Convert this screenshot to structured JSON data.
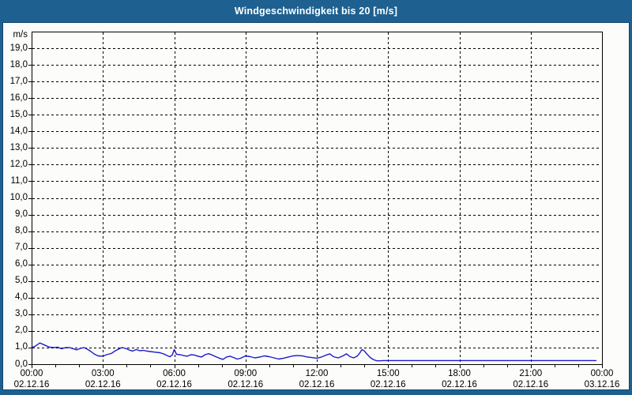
{
  "titlebar": {
    "title": "Windgeschwindigkeit bis 20 [m/s]",
    "bg_color": "#1E6190",
    "text_color": "#FFFFFF"
  },
  "panel": {
    "bg_color": "#FCFDFA",
    "border_color": "#10446C"
  },
  "chart_data": {
    "type": "line",
    "title": "Windgeschwindigkeit bis 20 [m/s]",
    "unit": "m/s",
    "ylabel": "m/s",
    "ylim": [
      0,
      20
    ],
    "xlim_hours": [
      0,
      24
    ],
    "grid": "dashed",
    "grid_color": "#000000",
    "y_tick_step": 1.0,
    "y_tick_labels": [
      "0,0",
      "1,0",
      "2,0",
      "3,0",
      "4,0",
      "5,0",
      "6,0",
      "7,0",
      "8,0",
      "9,0",
      "10,0",
      "11,0",
      "12,0",
      "13,0",
      "14,0",
      "15,0",
      "16,0",
      "17,0",
      "18,0",
      "19,0"
    ],
    "x_ticks": [
      {
        "hour": 0,
        "time": "00:00",
        "date": "02.12.16"
      },
      {
        "hour": 3,
        "time": "03:00",
        "date": "02.12.16"
      },
      {
        "hour": 6,
        "time": "06:00",
        "date": "02.12.16"
      },
      {
        "hour": 9,
        "time": "09:00",
        "date": "02.12.16"
      },
      {
        "hour": 12,
        "time": "12:00",
        "date": "02.12.16"
      },
      {
        "hour": 15,
        "time": "15:00",
        "date": "02.12.16"
      },
      {
        "hour": 18,
        "time": "18:00",
        "date": "02.12.16"
      },
      {
        "hour": 21,
        "time": "21:00",
        "date": "02.12.16"
      },
      {
        "hour": 24,
        "time": "00:00",
        "date": "03.12.16"
      }
    ],
    "minor_x_tick_hours": 1,
    "line_color": "#1B1BCE",
    "series": [
      {
        "name": "Windgeschwindigkeit",
        "points": [
          [
            0,
            1.0
          ],
          [
            0.15,
            1.08
          ],
          [
            0.35,
            1.28
          ],
          [
            0.55,
            1.15
          ],
          [
            0.75,
            1.02
          ],
          [
            0.95,
            1.0
          ],
          [
            1.1,
            1.02
          ],
          [
            1.25,
            0.93
          ],
          [
            1.45,
            1.0
          ],
          [
            1.6,
            1.0
          ],
          [
            1.75,
            0.93
          ],
          [
            1.9,
            0.86
          ],
          [
            2.05,
            0.95
          ],
          [
            2.2,
            1.0
          ],
          [
            2.35,
            0.9
          ],
          [
            2.5,
            0.76
          ],
          [
            2.65,
            0.6
          ],
          [
            2.8,
            0.5
          ],
          [
            3.0,
            0.48
          ],
          [
            3.15,
            0.57
          ],
          [
            3.35,
            0.64
          ],
          [
            3.5,
            0.79
          ],
          [
            3.65,
            0.9
          ],
          [
            3.8,
            1.0
          ],
          [
            3.95,
            0.95
          ],
          [
            4.1,
            0.86
          ],
          [
            4.25,
            0.79
          ],
          [
            4.4,
            0.88
          ],
          [
            4.55,
            0.81
          ],
          [
            4.7,
            0.83
          ],
          [
            4.85,
            0.79
          ],
          [
            5.0,
            0.76
          ],
          [
            5.2,
            0.72
          ],
          [
            5.4,
            0.69
          ],
          [
            5.55,
            0.62
          ],
          [
            5.7,
            0.52
          ],
          [
            5.82,
            0.45
          ],
          [
            5.92,
            0.55
          ],
          [
            6.0,
            0.88
          ],
          [
            6.1,
            0.6
          ],
          [
            6.25,
            0.57
          ],
          [
            6.4,
            0.52
          ],
          [
            6.55,
            0.48
          ],
          [
            6.7,
            0.57
          ],
          [
            6.85,
            0.55
          ],
          [
            7.0,
            0.48
          ],
          [
            7.15,
            0.43
          ],
          [
            7.3,
            0.57
          ],
          [
            7.45,
            0.63
          ],
          [
            7.6,
            0.55
          ],
          [
            7.75,
            0.45
          ],
          [
            7.9,
            0.36
          ],
          [
            8.05,
            0.29
          ],
          [
            8.2,
            0.43
          ],
          [
            8.35,
            0.48
          ],
          [
            8.5,
            0.4
          ],
          [
            8.65,
            0.31
          ],
          [
            8.8,
            0.36
          ],
          [
            9.0,
            0.5
          ],
          [
            9.2,
            0.45
          ],
          [
            9.4,
            0.38
          ],
          [
            9.6,
            0.43
          ],
          [
            9.8,
            0.5
          ],
          [
            10.0,
            0.45
          ],
          [
            10.2,
            0.38
          ],
          [
            10.4,
            0.31
          ],
          [
            10.6,
            0.36
          ],
          [
            10.8,
            0.43
          ],
          [
            11.0,
            0.5
          ],
          [
            11.2,
            0.52
          ],
          [
            11.4,
            0.5
          ],
          [
            11.6,
            0.43
          ],
          [
            11.8,
            0.4
          ],
          [
            12.0,
            0.36
          ],
          [
            12.2,
            0.43
          ],
          [
            12.4,
            0.55
          ],
          [
            12.55,
            0.62
          ],
          [
            12.7,
            0.45
          ],
          [
            12.9,
            0.38
          ],
          [
            13.1,
            0.5
          ],
          [
            13.25,
            0.62
          ],
          [
            13.4,
            0.45
          ],
          [
            13.55,
            0.38
          ],
          [
            13.7,
            0.48
          ],
          [
            13.8,
            0.66
          ],
          [
            13.9,
            0.88
          ],
          [
            14.0,
            0.8
          ],
          [
            14.1,
            0.62
          ],
          [
            14.25,
            0.4
          ],
          [
            14.4,
            0.26
          ],
          [
            14.55,
            0.2
          ],
          [
            14.8,
            0.22
          ],
          [
            15.5,
            0.22
          ],
          [
            16.5,
            0.22
          ],
          [
            17.5,
            0.22
          ],
          [
            18.5,
            0.22
          ],
          [
            19.5,
            0.22
          ],
          [
            20.5,
            0.22
          ],
          [
            21.5,
            0.22
          ],
          [
            22.5,
            0.22
          ],
          [
            23.75,
            0.22
          ]
        ]
      }
    ]
  }
}
